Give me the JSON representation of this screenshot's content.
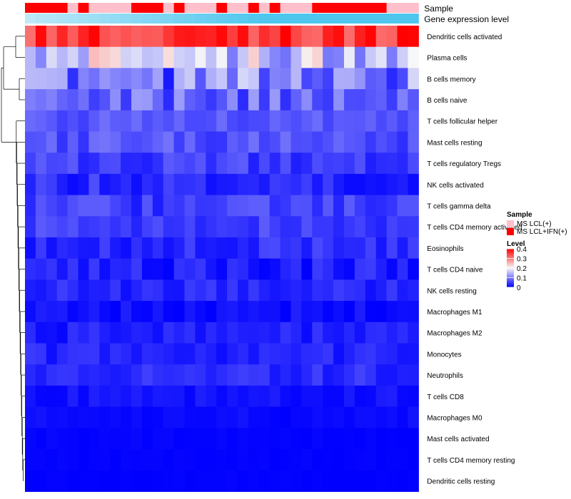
{
  "chart_data": {
    "type": "heatmap",
    "title": "",
    "annotation_tracks": [
      {
        "name": "Sample",
        "values": [
          2,
          2,
          2,
          2,
          1,
          2,
          1,
          1,
          1,
          1,
          2,
          2,
          2,
          1,
          2,
          1,
          1,
          1,
          2,
          1,
          1,
          2,
          1,
          2,
          1,
          1,
          1,
          2,
          2,
          2,
          2,
          2,
          2,
          2,
          1,
          1,
          1
        ]
      },
      {
        "name": "Gene expression level",
        "values": [
          0.05,
          0.08,
          0.1,
          0.12,
          0.14,
          0.16,
          0.18,
          0.2,
          0.22,
          0.24,
          0.26,
          0.28,
          0.3,
          0.32,
          0.34,
          0.36,
          0.38,
          0.4,
          0.42,
          0.44,
          0.46,
          0.48,
          0.5,
          0.52,
          0.54,
          0.56,
          0.58,
          0.6,
          0.62,
          0.64,
          0.66,
          0.68,
          0.7,
          0.72,
          0.74,
          0.76,
          0.78
        ]
      }
    ],
    "sample_legend": {
      "title": "Sample",
      "items": [
        {
          "label": "MS LCL(+)",
          "color": "#ffc0cb"
        },
        {
          "label": "MS LCL+IFN(+)",
          "color": "#ff0000"
        }
      ]
    },
    "level_legend": {
      "title": "Level",
      "ticks": [
        {
          "label": "0.4",
          "value": 0.4
        },
        {
          "label": "0.3",
          "value": 0.3
        },
        {
          "label": "0.2",
          "value": 0.2
        },
        {
          "label": "0.1",
          "value": 0.1
        },
        {
          "label": "0",
          "value": 0
        }
      ]
    },
    "color_scale": {
      "low": "#0000ff",
      "mid": "#f7f7f7",
      "high": "#ff0000",
      "min": 0,
      "mid_value": 0.2,
      "max": 0.4
    },
    "rows": [
      {
        "name": "Dendritic cells activated",
        "base": 0.36,
        "spread": 0.05
      },
      {
        "name": "Plasma cells",
        "base": 0.18,
        "spread": 0.09
      },
      {
        "name": "B cells memory",
        "base": 0.1,
        "spread": 0.08
      },
      {
        "name": "B cells naive",
        "base": 0.08,
        "spread": 0.05
      },
      {
        "name": "T cells follicular helper",
        "base": 0.07,
        "spread": 0.02
      },
      {
        "name": "Mast cells resting",
        "base": 0.065,
        "spread": 0.03
      },
      {
        "name": "T cells regulatory  Tregs",
        "base": 0.05,
        "spread": 0.025
      },
      {
        "name": "NK cells activated",
        "base": 0.035,
        "spread": 0.03
      },
      {
        "name": "T cells gamma delta",
        "base": 0.05,
        "spread": 0.03
      },
      {
        "name": "T cells CD4 memory activated",
        "base": 0.05,
        "spread": 0.025
      },
      {
        "name": "Eosinophils",
        "base": 0.035,
        "spread": 0.025
      },
      {
        "name": "T cells CD4 naive",
        "base": 0.025,
        "spread": 0.025
      },
      {
        "name": "NK cells resting",
        "base": 0.03,
        "spread": 0.02
      },
      {
        "name": "Macrophages M1",
        "base": 0.012,
        "spread": 0.015
      },
      {
        "name": "Macrophages M2",
        "base": 0.025,
        "spread": 0.02
      },
      {
        "name": "Monocytes",
        "base": 0.03,
        "spread": 0.02
      },
      {
        "name": "Neutrophils",
        "base": 0.035,
        "spread": 0.02
      },
      {
        "name": "T cells CD8",
        "base": 0.015,
        "spread": 0.012
      },
      {
        "name": "Macrophages M0",
        "base": 0.008,
        "spread": 0.008
      },
      {
        "name": "Mast cells activated",
        "base": 0.003,
        "spread": 0.004
      },
      {
        "name": "T cells CD4 memory resting",
        "base": 0.002,
        "spread": 0.003
      },
      {
        "name": "Dendritic cells resting",
        "base": 0.001,
        "spread": 0.002
      }
    ],
    "n_columns": 37
  }
}
